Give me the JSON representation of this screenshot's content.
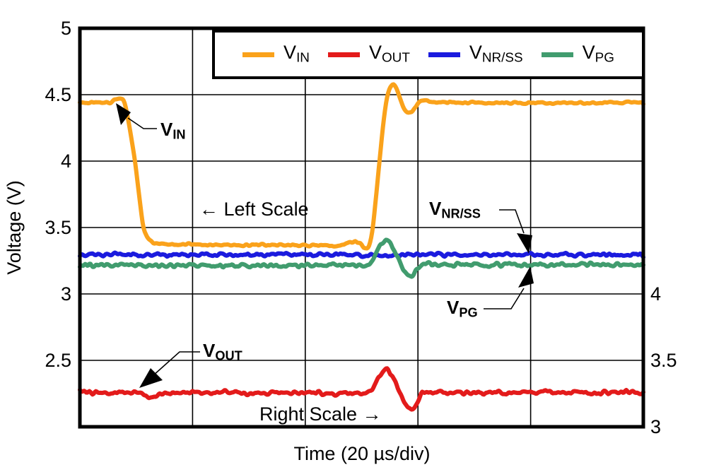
{
  "chart_data": {
    "type": "line",
    "title": "",
    "xlabel": "Time (20 µs/div)",
    "background": "#ffffff",
    "grid": "on",
    "grid_color": "#000000",
    "x_axis": {
      "total_divisions": 5,
      "us_per_div": 20,
      "range_us": [
        0,
        100
      ]
    },
    "y_left_axis": {
      "label": "Voltage (V)",
      "range": [
        2,
        5
      ],
      "tick_step": 0.5,
      "tick_labels": [
        "5",
        "4.5",
        "4",
        "3.5",
        "3",
        "2.5"
      ]
    },
    "y_right_axis": {
      "range": [
        3,
        6
      ],
      "tick_labels": [
        "4",
        "3.5",
        "3"
      ],
      "offset_from_left": 1.0,
      "relation": "right scale value = left scale value + 1"
    },
    "legend": {
      "position": "top-right-inside",
      "border": "#000000"
    },
    "series": [
      {
        "name": "V_IN",
        "label_main": "V",
        "label_sub": "IN",
        "color": "#FAA21B",
        "axis": "left",
        "noise_v": 0.0045,
        "points": [
          [
            0,
            4.44
          ],
          [
            5.0,
            4.44
          ],
          [
            5.8,
            4.445
          ],
          [
            6.5,
            4.47
          ],
          [
            7.1,
            4.48
          ],
          [
            7.7,
            4.46
          ],
          [
            8.0,
            4.44
          ],
          [
            8.6,
            4.31
          ],
          [
            9.3,
            4.13
          ],
          [
            9.8,
            4.0
          ],
          [
            10.5,
            3.74
          ],
          [
            11.2,
            3.5
          ],
          [
            12.0,
            3.42
          ],
          [
            12.9,
            3.385
          ],
          [
            14,
            3.375
          ],
          [
            25,
            3.37
          ],
          [
            40,
            3.365
          ],
          [
            46.5,
            3.365
          ],
          [
            47.6,
            3.385
          ],
          [
            48.8,
            3.395
          ],
          [
            49.8,
            3.375
          ],
          [
            50.6,
            3.335
          ],
          [
            51.2,
            3.34
          ],
          [
            51.9,
            3.45
          ],
          [
            52.6,
            3.75
          ],
          [
            53.4,
            4.1
          ],
          [
            54.2,
            4.42
          ],
          [
            54.9,
            4.55
          ],
          [
            55.5,
            4.585
          ],
          [
            56.2,
            4.55
          ],
          [
            57.0,
            4.45
          ],
          [
            57.8,
            4.37
          ],
          [
            58.4,
            4.35
          ],
          [
            59.2,
            4.385
          ],
          [
            60.1,
            4.44
          ],
          [
            60.8,
            4.465
          ],
          [
            61.6,
            4.45
          ],
          [
            62.6,
            4.44
          ],
          [
            75,
            4.44
          ],
          [
            100,
            4.44
          ]
        ]
      },
      {
        "name": "V_OUT",
        "label_main": "V",
        "label_sub": "OUT",
        "color": "#E31B1B",
        "axis": "right",
        "noise_v": 0.0085,
        "points": [
          [
            0,
            3.255
          ],
          [
            10.3,
            3.255
          ],
          [
            11.3,
            3.24
          ],
          [
            12.3,
            3.22
          ],
          [
            13.3,
            3.235
          ],
          [
            14.8,
            3.25
          ],
          [
            18,
            3.255
          ],
          [
            50.6,
            3.255
          ],
          [
            51.7,
            3.27
          ],
          [
            52.5,
            3.33
          ],
          [
            53.5,
            3.41
          ],
          [
            54.2,
            3.44
          ],
          [
            54.9,
            3.425
          ],
          [
            55.9,
            3.35
          ],
          [
            56.9,
            3.26
          ],
          [
            57.7,
            3.18
          ],
          [
            58.3,
            3.145
          ],
          [
            58.9,
            3.13
          ],
          [
            59.6,
            3.165
          ],
          [
            60.3,
            3.235
          ],
          [
            60.9,
            3.27
          ],
          [
            61.6,
            3.255
          ],
          [
            62.4,
            3.26
          ],
          [
            64,
            3.255
          ],
          [
            100,
            3.26
          ]
        ]
      },
      {
        "name": "V_NR/SS",
        "label_main": "V",
        "label_sub": "NR/SS",
        "color": "#1B1BDE",
        "axis": "left",
        "noise_v": 0.0075,
        "points": [
          [
            0,
            3.295
          ],
          [
            50,
            3.295
          ],
          [
            52.5,
            3.29
          ],
          [
            54,
            3.285
          ],
          [
            55.5,
            3.285
          ],
          [
            57.5,
            3.29
          ],
          [
            60,
            3.295
          ],
          [
            100,
            3.295
          ]
        ]
      },
      {
        "name": "V_PG",
        "label_main": "V",
        "label_sub": "PG",
        "color": "#419C6E",
        "axis": "left",
        "noise_v": 0.0085,
        "points": [
          [
            0,
            3.22
          ],
          [
            10.3,
            3.22
          ],
          [
            11.6,
            3.205
          ],
          [
            13.3,
            3.21
          ],
          [
            16,
            3.215
          ],
          [
            50.4,
            3.215
          ],
          [
            51.5,
            3.23
          ],
          [
            52.3,
            3.275
          ],
          [
            53.2,
            3.365
          ],
          [
            54.1,
            3.41
          ],
          [
            54.8,
            3.4
          ],
          [
            55.6,
            3.345
          ],
          [
            56.6,
            3.255
          ],
          [
            57.5,
            3.165
          ],
          [
            58.3,
            3.13
          ],
          [
            58.9,
            3.135
          ],
          [
            59.6,
            3.17
          ],
          [
            60.3,
            3.205
          ],
          [
            61.1,
            3.22
          ],
          [
            63,
            3.22
          ],
          [
            100,
            3.22
          ]
        ]
      }
    ],
    "annotations": {
      "vin": {
        "main": "V",
        "sub": "IN"
      },
      "vout": {
        "main": "V",
        "sub": "OUT"
      },
      "vnrss": {
        "main": "V",
        "sub": "NR/SS"
      },
      "vpg": {
        "main": "V",
        "sub": "PG"
      },
      "left_scale": "← Left Scale",
      "right_scale": "Right Scale →"
    }
  }
}
